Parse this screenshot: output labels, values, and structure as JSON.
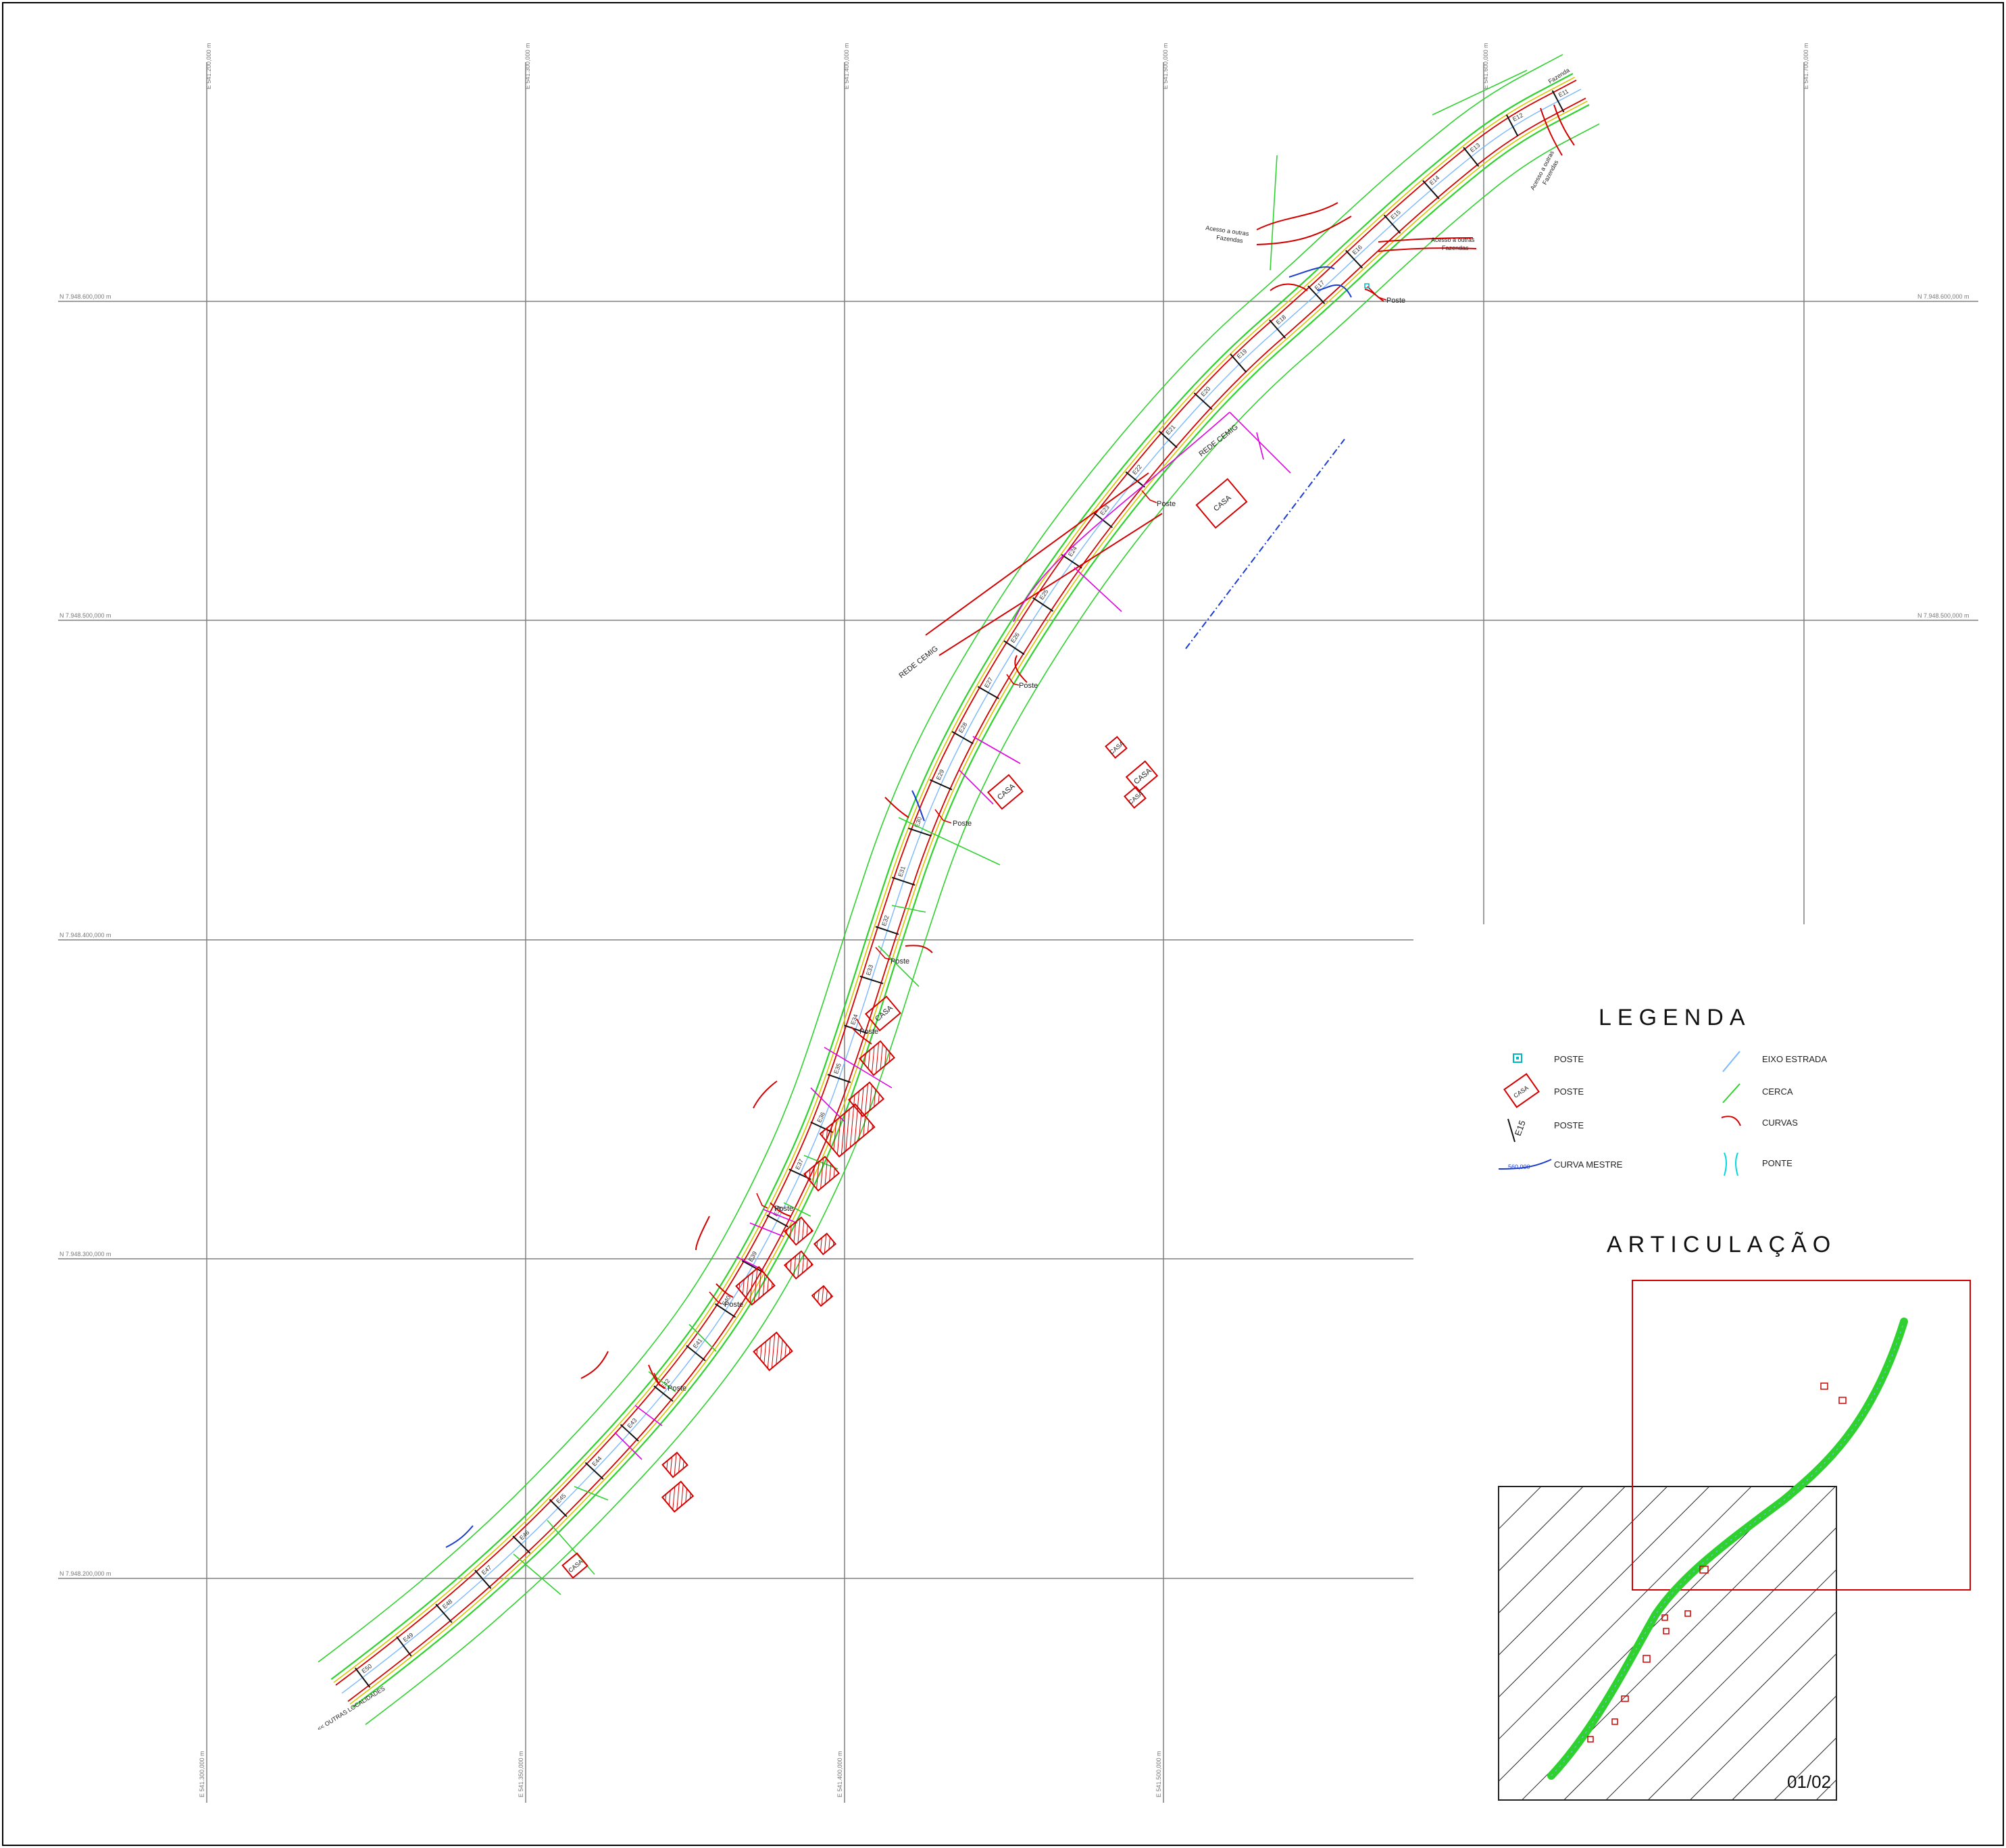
{
  "grid": {
    "easting_top": [
      "E 541.200,000 m",
      "E 541.300,000 m",
      "E 541.400,000 m",
      "E 541.500,000 m",
      "E 541.600,000 m",
      "E 541.700,000 m"
    ],
    "easting_bottom": [
      "E 541.300,000 m",
      "E 541.350,000 m",
      "E 541.400,000 m",
      "E 541.500,000 m"
    ],
    "northing": [
      "N 7.948.600,000 m",
      "N 7.948.500,000 m",
      "N 7.948.400,000 m",
      "N 7.948.300,000 m",
      "N 7.948.200,000 m"
    ]
  },
  "map_labels": {
    "poste": "Poste",
    "casa": "CASA",
    "rede_cemig": "REDE CEMIG",
    "acesso_outras_l1": "Acesso a outras",
    "acesso_outras_l2": "Fazendas",
    "outras_localidades": "<< OUTRAS LOCALIDADES",
    "fazenda": "Fazenda"
  },
  "stations": [
    "E11",
    "E12",
    "E13",
    "E14",
    "E15",
    "E16",
    "E17",
    "E18",
    "E19",
    "E20",
    "E21",
    "E22",
    "E23",
    "E24",
    "E25",
    "E26",
    "E27",
    "E28",
    "E29",
    "E30",
    "E31",
    "E32",
    "E33",
    "E34",
    "E35",
    "E36",
    "E37",
    "E38",
    "E39",
    "E40",
    "E41",
    "E42",
    "E43",
    "E44",
    "E45",
    "E46",
    "E47",
    "E48",
    "E49",
    "E50"
  ],
  "legend": {
    "title": "LEGENDA",
    "items": [
      {
        "label": "POSTE",
        "symbol": "poste-icon"
      },
      {
        "label": "POSTE",
        "symbol": "casa-icon",
        "symbol_text": "CASA"
      },
      {
        "label": "POSTE",
        "symbol": "station-icon",
        "symbol_text": "E15"
      },
      {
        "label": "CURVA MESTRE",
        "symbol": "contour-icon",
        "symbol_text": "560,000"
      },
      {
        "label": "EIXO ESTRADA",
        "symbol": "road-axis-icon"
      },
      {
        "label": "CERCA",
        "symbol": "fence-icon"
      },
      {
        "label": "CURVAS",
        "symbol": "curve-icon"
      },
      {
        "label": "PONTE",
        "symbol": "bridge-icon"
      }
    ]
  },
  "articulacao": {
    "title": "ARTICULAÇÃO",
    "sheet": "01/02"
  },
  "colors": {
    "road_axis": "#7ab8ff",
    "fence": "#2fd12f",
    "curves": "#d40000",
    "contour": "#1a3ccf",
    "cemig": "#1a3ccf",
    "lot_lines": "#e000e0",
    "grid": "#7f7f7f",
    "bridge": "#00d8e0"
  }
}
